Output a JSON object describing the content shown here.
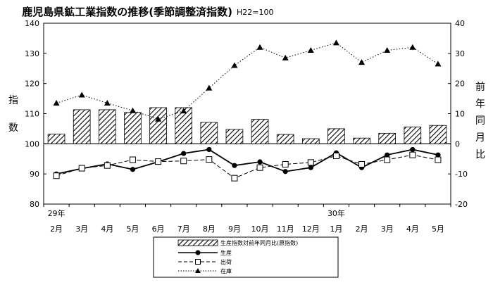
{
  "chart_data": {
    "type": "bar+line",
    "title": "鹿児島県鉱工業指数の推移(季節調整済指数)",
    "subtitle": "H22=100",
    "year_labels": [
      {
        "label": "29年",
        "index": 0
      },
      {
        "label": "30年",
        "index": 11
      }
    ],
    "categories": [
      "2月",
      "3月",
      "4月",
      "5月",
      "6月",
      "7月",
      "8月",
      "9月",
      "10月",
      "11月",
      "12月",
      "1月",
      "2月",
      "3月",
      "4月",
      "5月"
    ],
    "left_axis": {
      "label": "指数",
      "min": 80,
      "max": 140,
      "ticks": [
        "80",
        "90",
        "100",
        "110",
        "120",
        "130",
        "140"
      ]
    },
    "right_axis": {
      "label": "前年同月比",
      "min": -20,
      "max": 40,
      "ticks": [
        "-20",
        "-10",
        "0",
        "10",
        "20",
        "30",
        "40"
      ]
    },
    "series": [
      {
        "name": "生産指数対前年同月比(原指数)",
        "type": "bar",
        "axis": "right",
        "values": [
          3.2,
          11.3,
          11.3,
          10.4,
          12.0,
          12.0,
          7.1,
          4.8,
          8.1,
          3.1,
          1.7,
          5.0,
          1.9,
          3.5,
          5.6,
          6.1
        ]
      },
      {
        "name": "生産",
        "type": "line",
        "axis": "left",
        "marker": "filled-circle",
        "dash": "solid",
        "values": [
          90.0,
          91.8,
          93.3,
          91.5,
          94.0,
          96.8,
          98.1,
          92.8,
          94.0,
          90.8,
          92.1,
          97.0,
          92.1,
          96.3,
          98.1,
          96.3
        ]
      },
      {
        "name": "出荷",
        "type": "line",
        "axis": "left",
        "marker": "open-square",
        "dash": "dashed",
        "values": [
          89.4,
          91.9,
          92.8,
          94.7,
          94.1,
          94.3,
          94.8,
          88.6,
          92.1,
          93.2,
          93.8,
          96.0,
          93.2,
          94.7,
          96.3,
          94.7
        ]
      },
      {
        "name": "在庫",
        "type": "line",
        "axis": "left",
        "marker": "filled-triangle",
        "dash": "dotted",
        "values": [
          113.5,
          116.2,
          113.5,
          111.0,
          108.2,
          110.9,
          118.5,
          126.0,
          132.0,
          128.5,
          131.0,
          133.5,
          127.0,
          131.0,
          132.0,
          126.5
        ]
      }
    ],
    "grid": false,
    "legend_position": "bottom-center",
    "colors": {
      "line": "#000000",
      "background": "#ffffff"
    }
  }
}
